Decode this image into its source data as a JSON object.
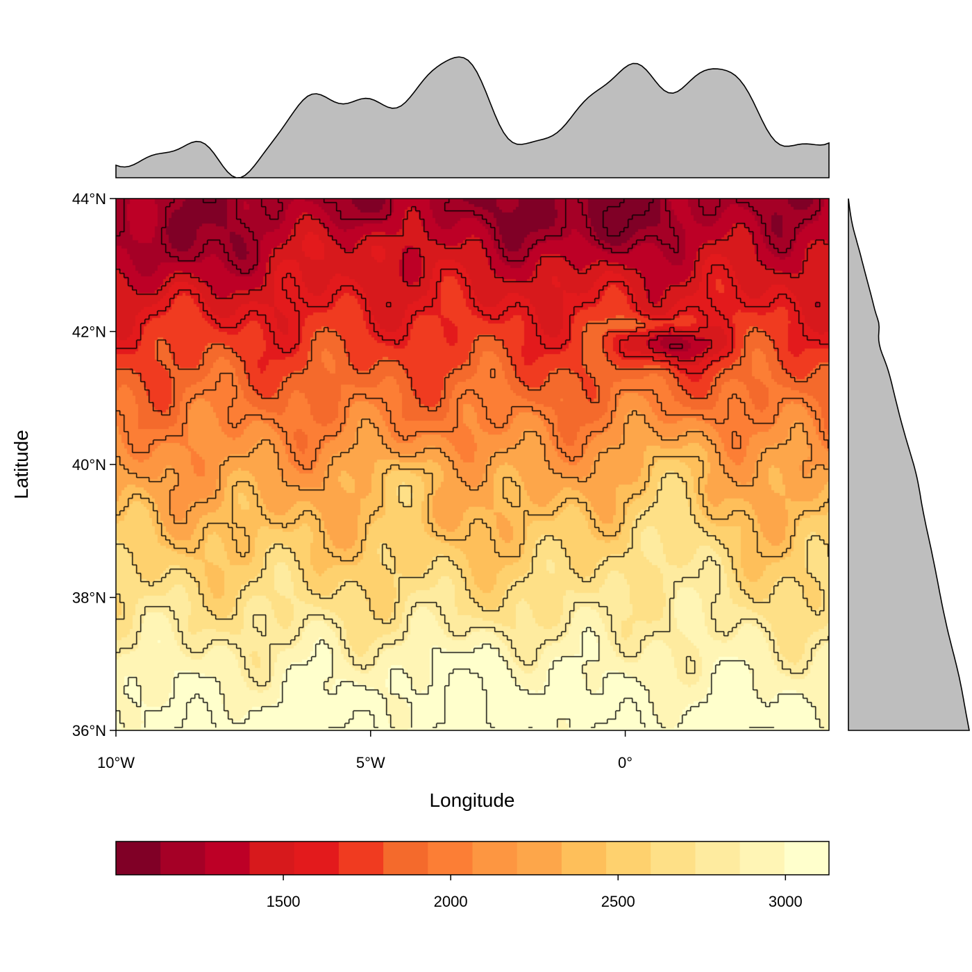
{
  "chart_data": {
    "type": "heatmap",
    "subtype": "filled-contour map with marginal profiles",
    "xlabel": "Longitude",
    "ylabel": "Latitude",
    "x_range": [
      -10,
      4
    ],
    "y_range": [
      36,
      44
    ],
    "x_ticks": [
      {
        "value": -10,
        "label": "10°W"
      },
      {
        "value": -5,
        "label": "5°W"
      },
      {
        "value": 0,
        "label": "0°"
      }
    ],
    "y_ticks": [
      {
        "value": 36,
        "label": "36°N"
      },
      {
        "value": 38,
        "label": "38°N"
      },
      {
        "value": 40,
        "label": "40°N"
      },
      {
        "value": 42,
        "label": "42°N"
      },
      {
        "value": 44,
        "label": "44°N"
      }
    ],
    "color_scale": {
      "min": 1000,
      "max": 3130,
      "ticks": [
        {
          "value": 1500,
          "label": "1500"
        },
        {
          "value": 2000,
          "label": "2000"
        },
        {
          "value": 2500,
          "label": "2500"
        },
        {
          "value": 3000,
          "label": "3000"
        }
      ],
      "colors": [
        "#800026",
        "#a50026",
        "#bd0026",
        "#d7191c",
        "#e31a1c",
        "#f03b20",
        "#f46a2c",
        "#fc7e35",
        "#fd9641",
        "#fda64a",
        "#febf5a",
        "#fed16e",
        "#fee087",
        "#feeb9f",
        "#fff5b5",
        "#ffffcc"
      ]
    },
    "grid": false,
    "legend": "colorbar at bottom",
    "top_profile_color": "#bebebe",
    "right_profile_color": "#bebebe"
  }
}
